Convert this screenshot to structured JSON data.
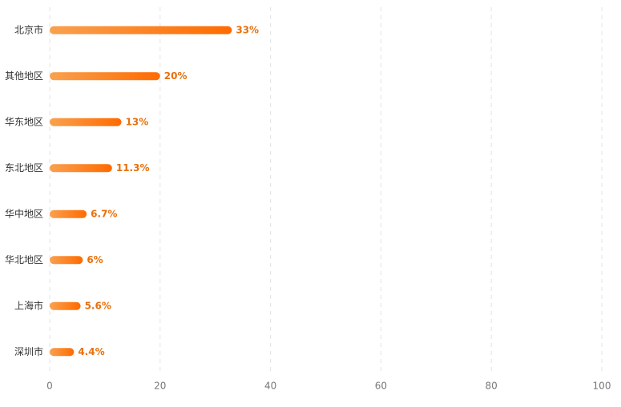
{
  "chart_data": {
    "type": "hbar",
    "categories": [
      "北京市",
      "其他地区",
      "华东地区",
      "东北地区",
      "华中地区",
      "华北地区",
      "上海市",
      "深圳市"
    ],
    "values": [
      33,
      20,
      13,
      11.3,
      6.7,
      6,
      5.6,
      4.4
    ],
    "value_labels": [
      "33%",
      "20%",
      "13%",
      "11.3%",
      "6.7%",
      "6%",
      "5.6%",
      "4.4%"
    ],
    "gradient": [
      "#f9a14f",
      "#ff6a00"
    ],
    "label_color": "#e8700c",
    "xlim": [
      0,
      100
    ],
    "xticks": [
      0,
      20,
      40,
      60,
      80,
      100
    ],
    "grid": true
  }
}
